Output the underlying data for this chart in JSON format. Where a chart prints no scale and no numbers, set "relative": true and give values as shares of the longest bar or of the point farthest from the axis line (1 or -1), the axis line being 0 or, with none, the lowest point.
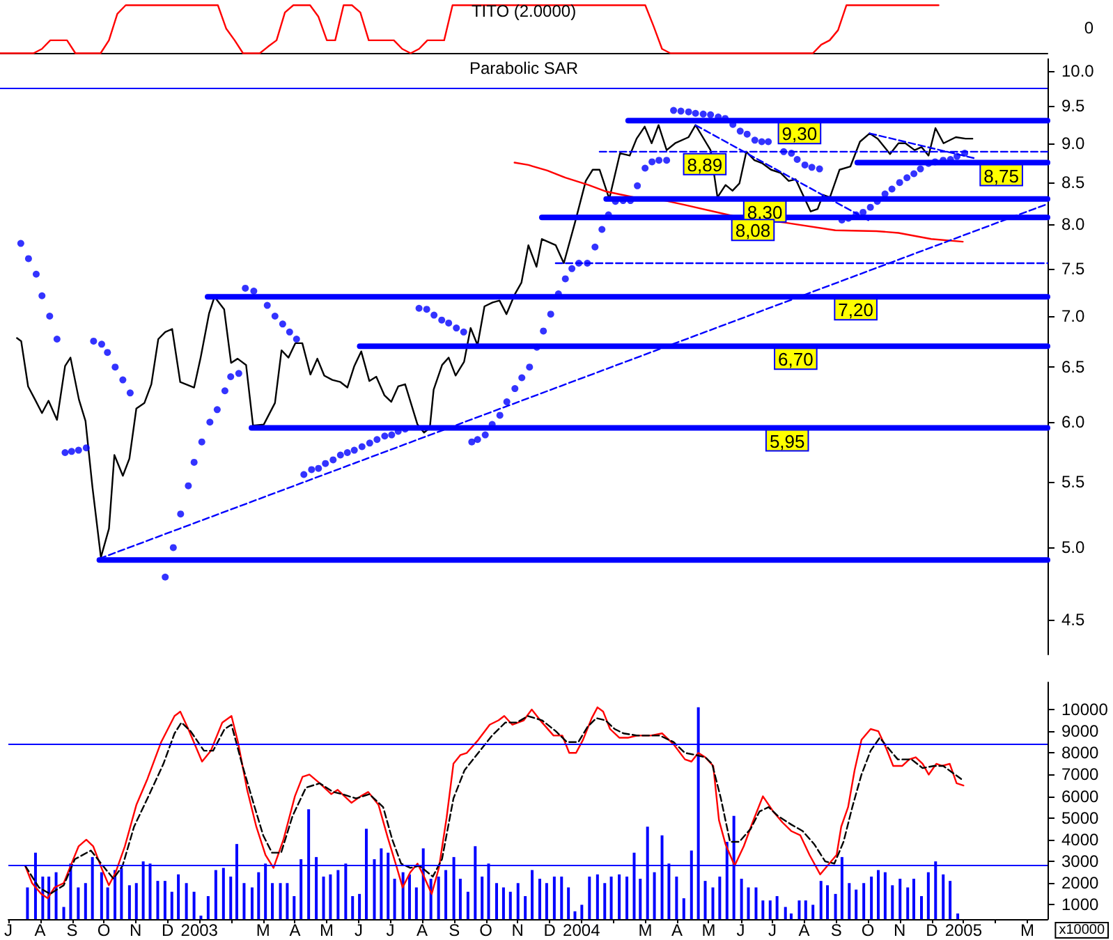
{
  "chart_data": [
    {
      "type": "line",
      "title": "TITO (2.0000)",
      "relative": true,
      "tick_labels": false,
      "marker": "none",
      "annotations": [
        "0"
      ],
      "categories": [
        null,
        null,
        null,
        null,
        null,
        null,
        null,
        null,
        null,
        null,
        null,
        null,
        null,
        null,
        null,
        null,
        null,
        null,
        null,
        null,
        null,
        null,
        null,
        null,
        null,
        null,
        null,
        null,
        null,
        null,
        null,
        null,
        null,
        null,
        null,
        null,
        null,
        null,
        null,
        null,
        null,
        null,
        null,
        null,
        null,
        null,
        null,
        null,
        null,
        null,
        null,
        null,
        null,
        null,
        null,
        null,
        null,
        null,
        null,
        null,
        null,
        null,
        null,
        null,
        null,
        null,
        null,
        null,
        null,
        null,
        null,
        null,
        null,
        null,
        null,
        null,
        null,
        null,
        null,
        null,
        null,
        null,
        null,
        null,
        null,
        null,
        null,
        null,
        null,
        null,
        null,
        null,
        null,
        null,
        null,
        null,
        null,
        null,
        null,
        null,
        null,
        null,
        null,
        null,
        null,
        null,
        null,
        null,
        null,
        null,
        null,
        null,
        null,
        null,
        null,
        null,
        null,
        null,
        null,
        null,
        null,
        null,
        null,
        null,
        null,
        null
      ],
      "series": [
        {
          "color": "#ff0000",
          "values": [
            0,
            0,
            0,
            0,
            0,
            0.09,
            0.27,
            0.27,
            0.27,
            0,
            0,
            0,
            0,
            0.27,
            0.82,
            1,
            1,
            1,
            1,
            1,
            1,
            1,
            1,
            1,
            1,
            1,
            1,
            0.51,
            0.27,
            0,
            0,
            0,
            0.14,
            0.27,
            0.85,
            1,
            1,
            1,
            0.76,
            0.27,
            0.27,
            1,
            1,
            0.85,
            0.27,
            0.27,
            0.27,
            0.27,
            0.09,
            0,
            0.09,
            0.27,
            0.27,
            0.27,
            1,
            1,
            1,
            1,
            1,
            1,
            1,
            1,
            1,
            1,
            1,
            1,
            1,
            1,
            1,
            1,
            1,
            1,
            1,
            1,
            1,
            1,
            1,
            1,
            0.56,
            0.09,
            0,
            0,
            0,
            0,
            0,
            0,
            0,
            0,
            0,
            0,
            0,
            0,
            0,
            0,
            0,
            0,
            0,
            0,
            0.18,
            0.27,
            0.48,
            1,
            1,
            1,
            1,
            1,
            1,
            1,
            1,
            1,
            1,
            1,
            1,
            null,
            null,
            null,
            null,
            null,
            null,
            null,
            null,
            null,
            null,
            null,
            null,
            null
          ]
        }
      ]
    },
    {
      "type": "line",
      "title": "Parabolic SAR",
      "log": "y",
      "xlim": [
        2002.5,
        2005.22
      ],
      "ylim": [
        4.28,
        10.18
      ],
      "tick_labels": "y",
      "marker": "none",
      "yticks": [
        4.5,
        {
          "value": 5,
          "label": "5.0"
        },
        5.5,
        {
          "value": 6,
          "label": "6.0"
        },
        6.5,
        {
          "value": 7,
          "label": "7.0"
        },
        7.5,
        {
          "value": 8,
          "label": "8.0"
        },
        8.5,
        {
          "value": 9,
          "label": "9.0"
        },
        9.5,
        {
          "value": 10,
          "label": "10.0"
        }
      ],
      "ref_lines": [
        {
          "axis": "y",
          "value": 9.76,
          "color": "#0000ff"
        }
      ],
      "series": [
        {
          "color": "#000000",
          "x": [
            2002.544,
            2002.555,
            2002.573,
            2002.591,
            2002.609,
            2002.626,
            2002.648,
            2002.669,
            2002.683,
            2002.705,
            2002.722,
            2002.74,
            2002.762,
            2002.783,
            2002.797,
            2002.819,
            2002.836,
            2002.854,
            2002.875,
            2002.893,
            2002.911,
            2002.929,
            2002.947,
            2002.968,
            2003.004,
            2003.021,
            2003.043,
            2003.057,
            2003.082,
            2003.1,
            2003.117,
            2003.139,
            2003.157,
            2003.185,
            2003.214,
            2003.231,
            2003.249,
            2003.267,
            2003.285,
            2003.306,
            2003.324,
            2003.342,
            2003.363,
            2003.384,
            2003.402,
            2003.42,
            2003.438,
            2003.459,
            2003.477,
            2003.498,
            2003.516,
            2003.534,
            2003.552,
            2003.584,
            2003.601,
            2003.616,
            2003.626,
            2003.648,
            2003.665,
            2003.683,
            2003.705,
            2003.722,
            2003.74,
            2003.758,
            2003.779,
            2003.797,
            2003.815,
            2003.836,
            2003.854,
            2003.872,
            2003.893,
            2003.907,
            2003.943,
            2003.964,
            2003.993,
            2004.021,
            2004.039,
            2004.057,
            2004.082,
            2004.11,
            2004.135,
            2004.153,
            2004.174,
            2004.192,
            2004.21,
            2004.231,
            2004.253,
            2004.288,
            2004.306,
            2004.345,
            2004.363,
            2004.384,
            2004.402,
            2004.42,
            2004.438,
            2004.459,
            2004.48,
            2004.502,
            2004.527,
            2004.548,
            2004.566,
            2004.605,
            2004.623,
            2004.637,
            2004.655,
            2004.68,
            2004.708,
            2004.733,
            2004.758,
            2004.779,
            2004.811,
            2004.833,
            2004.851,
            2004.875,
            2004.893,
            2004.911,
            2004.929,
            2004.95,
            2004.982,
            2005.007,
            2005.025
          ],
          "values": [
            6.78,
            6.75,
            6.32,
            6.2,
            6.08,
            6.19,
            6.02,
            6.51,
            6.59,
            6.2,
            6.01,
            5.46,
            4.93,
            5.14,
            5.72,
            5.55,
            5.69,
            6.12,
            6.17,
            6.34,
            6.77,
            6.84,
            6.87,
            6.36,
            6.31,
            6.59,
            7.03,
            7.2,
            7.07,
            6.54,
            6.58,
            6.52,
            5.97,
            5.98,
            6.17,
            6.66,
            6.59,
            6.73,
            6.73,
            6.43,
            6.58,
            6.42,
            6.38,
            6.36,
            6.31,
            6.51,
            6.65,
            6.37,
            6.41,
            6.24,
            6.18,
            6.32,
            6.34,
            5.98,
            5.91,
            5.95,
            6.29,
            6.52,
            6.59,
            6.42,
            6.55,
            6.88,
            6.71,
            7.1,
            7.14,
            7.16,
            7.02,
            7.22,
            7.35,
            7.76,
            7.52,
            7.83,
            7.76,
            7.56,
            8.02,
            8.52,
            8.66,
            8.66,
            8.3,
            8.87,
            8.84,
            9.06,
            9.22,
            9.0,
            9.24,
            8.91,
            9.0,
            9.08,
            9.24,
            8.91,
            8.32,
            8.47,
            8.4,
            8.49,
            8.89,
            8.78,
            8.74,
            8.66,
            8.62,
            8.52,
            8.54,
            8.15,
            8.18,
            8.35,
            8.32,
            8.66,
            8.7,
            9.02,
            9.13,
            9.06,
            8.86,
            9.0,
            9.0,
            8.91,
            8.95,
            8.84,
            9.2,
            9.0,
            9.08,
            9.06,
            9.06
          ]
        },
        {
          "type": "scatter",
          "marker": "circle",
          "color": "#0000ff",
          "x": [
            2002.554,
            2002.574,
            2002.594,
            2002.609,
            2002.629,
            2002.648,
            2002.669,
            2002.686,
            2002.704,
            2002.724,
            2002.743,
            2002.764,
            2002.779,
            2002.799,
            2002.819,
            2002.838,
            2002.929,
            2002.95,
            2002.969,
            2002.989,
            2003.004,
            2003.024,
            2003.045,
            2003.064,
            2003.084,
            2003.099,
            2003.12,
            2003.137,
            2003.159,
            2003.194,
            2003.214,
            2003.234,
            2003.252,
            2003.27,
            2003.289,
            2003.309,
            2003.327,
            2003.345,
            2003.365,
            2003.384,
            2003.402,
            2003.42,
            2003.44,
            2003.46,
            2003.479,
            2003.499,
            2003.517,
            2003.534,
            2003.552,
            2003.588,
            2003.608,
            2003.627,
            2003.647,
            2003.665,
            2003.685,
            2003.704,
            2003.725,
            2003.74,
            2003.76,
            2003.778,
            2003.798,
            2003.816,
            2003.837,
            2003.855,
            2003.875,
            2003.894,
            2003.911,
            2003.93,
            2003.95,
            2003.968,
            2003.985,
            2004.003,
            2004.025,
            2004.045,
            2004.063,
            2004.08,
            2004.098,
            2004.118,
            2004.137,
            2004.155,
            2004.175,
            2004.193,
            2004.211,
            2004.231,
            2004.249,
            2004.268,
            2004.288,
            2004.306,
            2004.326,
            2004.345,
            2004.365,
            2004.383,
            2004.403,
            2004.422,
            2004.44,
            2004.46,
            2004.478,
            2004.495,
            2004.535,
            2004.555,
            2004.57,
            2004.59,
            2004.608,
            2004.628,
            2004.686,
            2004.703,
            2004.723,
            2004.741,
            2004.76,
            2004.778,
            2004.798,
            2004.816,
            2004.836,
            2004.855,
            2004.873,
            2004.89,
            2004.911,
            2004.928,
            2004.949,
            2004.968,
            2004.985,
            2005.005
          ],
          "values": [
            7.78,
            7.61,
            7.44,
            7.21,
            7.0,
            6.77,
            5.74,
            5.75,
            5.76,
            5.78,
            6.75,
            6.72,
            6.64,
            6.5,
            6.38,
            6.26,
            4.79,
            5.0,
            5.25,
            5.47,
            5.66,
            5.83,
            6.0,
            6.11,
            6.28,
            6.41,
            6.44,
            7.29,
            7.26,
            7.11,
            7.0,
            6.92,
            6.84,
            6.77,
            5.56,
            5.6,
            5.61,
            5.65,
            5.68,
            5.72,
            5.74,
            5.76,
            5.79,
            5.82,
            5.85,
            5.88,
            5.89,
            5.92,
            5.94,
            7.08,
            7.07,
            7.01,
            6.96,
            6.93,
            6.88,
            6.84,
            5.83,
            5.85,
            5.89,
            5.98,
            6.06,
            6.18,
            6.3,
            6.4,
            6.5,
            6.69,
            6.85,
            7.02,
            7.23,
            7.39,
            7.5,
            7.56,
            7.56,
            7.74,
            7.94,
            8.11,
            8.27,
            8.28,
            8.28,
            8.46,
            8.68,
            8.76,
            8.78,
            8.78,
            9.44,
            9.43,
            9.42,
            9.4,
            9.39,
            9.38,
            9.35,
            9.33,
            9.25,
            9.16,
            9.12,
            9.04,
            9.02,
            9.02,
            8.89,
            8.87,
            8.79,
            8.72,
            8.69,
            8.67,
            8.05,
            8.07,
            8.11,
            8.14,
            8.2,
            8.27,
            8.36,
            8.42,
            8.5,
            8.56,
            8.61,
            8.67,
            8.74,
            8.76,
            8.78,
            8.79,
            8.83,
            8.87
          ]
        },
        {
          "color": "#ff0000",
          "x": [
            2003.836,
            2003.872,
            2003.921,
            2003.968,
            2004.028,
            2004.074,
            2004.156,
            2004.227,
            2004.277,
            2004.42,
            2004.537,
            2004.669,
            2004.776,
            2004.833,
            2004.918,
            2005.0
          ],
          "values": [
            8.75,
            8.72,
            8.65,
            8.56,
            8.47,
            8.39,
            8.31,
            8.28,
            8.23,
            8.08,
            8.02,
            7.93,
            7.92,
            7.9,
            7.83,
            7.8
          ]
        },
        {
          "color": "#0000ff",
          "x": [
            2004.131,
            2004.576,
            2005.22
          ],
          "values": [
            9.3,
            9.3,
            9.3
          ],
          "value_labels": [
            null,
            "9,30",
            null
          ]
        },
        {
          "color": "#0000ff",
          "line_style": "dashed",
          "x": [
            2004.057,
            2004.33,
            2005.22
          ],
          "values": [
            8.89,
            8.89,
            8.89
          ],
          "value_labels": [
            null,
            "8,89",
            null
          ]
        },
        {
          "color": "#0000ff",
          "x": [
            2004.726,
            2005.1,
            2005.22
          ],
          "values": [
            8.75,
            8.75,
            8.75
          ],
          "value_labels": [
            null,
            "8,75",
            null
          ]
        },
        {
          "color": "#0000ff",
          "x": [
            2004.074,
            2004.486,
            2005.22
          ],
          "values": [
            8.3,
            8.3,
            8.3
          ],
          "value_labels": [
            null,
            "8,30",
            null
          ]
        },
        {
          "color": "#0000ff",
          "x": [
            2003.907,
            2004.455,
            2005.22
          ],
          "values": [
            8.08,
            8.08,
            8.08
          ],
          "value_labels": [
            null,
            "8,08",
            null
          ]
        },
        {
          "color": "#0000ff",
          "line_style": "dashed",
          "x": [
            2003.943,
            2005.22
          ],
          "values": [
            7.56,
            7.56
          ]
        },
        {
          "color": "#0000ff",
          "x": [
            2003.039,
            2004.722,
            2005.22
          ],
          "values": [
            7.2,
            7.2,
            7.2
          ],
          "value_labels": [
            null,
            "7,20",
            null
          ]
        },
        {
          "color": "#0000ff",
          "x": [
            2003.434,
            2004.566,
            2005.22
          ],
          "values": [
            6.7,
            6.7,
            6.7
          ],
          "value_labels": [
            null,
            "6,70",
            null
          ]
        },
        {
          "color": "#0000ff",
          "x": [
            2003.153,
            2004.544,
            2005.22
          ],
          "values": [
            5.95,
            5.95,
            5.95
          ],
          "value_labels": [
            null,
            "5,95",
            null
          ]
        },
        {
          "color": "#0000ff",
          "x": [
            2002.758,
            2005.22
          ],
          "values": [
            4.91,
            4.91
          ]
        },
        {
          "color": "#0000ff",
          "line_style": "dashed",
          "x": [
            2002.758,
            2005.22
          ],
          "values": [
            4.92,
            8.24
          ]
        },
        {
          "color": "#0000ff",
          "line_style": "dashed",
          "x": [
            2004.306,
            2004.758
          ],
          "values": [
            9.24,
            8.04
          ]
        },
        {
          "color": "#0000ff",
          "line_style": "dashed",
          "x": [
            2004.758,
            2005.035
          ],
          "values": [
            9.13,
            8.8
          ]
        }
      ]
    },
    {
      "type": "bar",
      "ylabel": "x10000",
      "xlim": [
        2002.5,
        2005.22
      ],
      "ylim": [
        340,
        11250
      ],
      "marker": "none",
      "xticks": [
        {
          "value": 2002.5,
          "label": "J"
        },
        {
          "value": 2002.583,
          "label": "A"
        },
        {
          "value": 2002.667,
          "label": "S"
        },
        {
          "value": 2002.75,
          "label": "O"
        },
        {
          "value": 2002.833,
          "label": "N"
        },
        {
          "value": 2002.917,
          "label": "D"
        },
        2003,
        {
          "value": 2003.083,
          "label": null
        },
        {
          "value": 2003.167,
          "label": "M"
        },
        {
          "value": 2003.25,
          "label": "A"
        },
        {
          "value": 2003.333,
          "label": "M"
        },
        {
          "value": 2003.417,
          "label": "J"
        },
        {
          "value": 2003.5,
          "label": "J"
        },
        {
          "value": 2003.583,
          "label": "A"
        },
        {
          "value": 2003.667,
          "label": "S"
        },
        {
          "value": 2003.75,
          "label": "O"
        },
        {
          "value": 2003.833,
          "label": "N"
        },
        {
          "value": 2003.917,
          "label": "D"
        },
        2004,
        {
          "value": 2004.083,
          "label": null
        },
        {
          "value": 2004.167,
          "label": "M"
        },
        {
          "value": 2004.25,
          "label": "A"
        },
        {
          "value": 2004.333,
          "label": "M"
        },
        {
          "value": 2004.417,
          "label": "J"
        },
        {
          "value": 2004.5,
          "label": "J"
        },
        {
          "value": 2004.583,
          "label": "A"
        },
        {
          "value": 2004.667,
          "label": "S"
        },
        {
          "value": 2004.75,
          "label": "O"
        },
        {
          "value": 2004.833,
          "label": "N"
        },
        {
          "value": 2004.917,
          "label": "D"
        },
        2005,
        {
          "value": 2005.083,
          "label": null
        },
        {
          "value": 2005.167,
          "label": "M"
        }
      ],
      "yticks": [
        1000,
        2000,
        3000,
        4000,
        5000,
        6000,
        7000,
        8000,
        9000,
        10000
      ],
      "ref_lines": [
        {
          "axis": "y",
          "value": 8400,
          "color": "#0000ff"
        },
        {
          "axis": "y",
          "value": 2800,
          "color": "#0000ff"
        }
      ],
      "series": [
        {
          "color": "#0000ff",
          "x": [
            2002.55,
            2002.571,
            2002.59,
            2002.606,
            2002.625,
            2002.645,
            2002.663,
            2002.683,
            2002.702,
            2002.72,
            2002.744,
            2002.76,
            2002.779,
            2002.796,
            2002.817,
            2002.835,
            2002.853,
            2002.871,
            2002.891,
            2002.91,
            2002.928,
            2002.945,
            2002.966,
            2002.986,
            2003.004,
            2003.023,
            2003.043,
            2003.063,
            2003.082,
            2003.098,
            2003.117,
            2003.138,
            2003.155,
            2003.173,
            2003.191,
            2003.212,
            2003.23,
            2003.248,
            2003.266,
            2003.286,
            2003.306,
            2003.325,
            2003.343,
            2003.363,
            2003.383,
            2003.401,
            2003.419,
            2003.437,
            2003.458,
            2003.476,
            2003.494,
            2003.511,
            2003.533,
            2003.55,
            2003.568,
            2003.586,
            2003.606,
            2003.626,
            2003.645,
            2003.666,
            2003.683,
            2003.703,
            2003.722,
            2003.74,
            2003.757,
            2003.778,
            2003.796,
            2003.814,
            2003.834,
            2003.853,
            2003.871,
            2003.891,
            2003.909,
            2003.929,
            2003.948,
            2003.966,
            2003.983,
            2004.001,
            2004.021,
            2004.042,
            2004.061,
            2004.078,
            2004.099,
            2004.119,
            2004.138,
            2004.154,
            2004.173,
            2004.191,
            2004.211,
            2004.229,
            2004.249,
            2004.268,
            2004.288,
            2004.306,
            2004.324,
            2004.344,
            2004.362,
            2004.381,
            2004.399,
            2004.419,
            2004.437,
            2004.457,
            2004.475,
            2004.494,
            2004.512,
            2004.534,
            2004.549,
            2004.57,
            2004.587,
            2004.606,
            2004.627,
            2004.644,
            2004.665,
            2004.682,
            2004.701,
            2004.719,
            2004.739,
            2004.759,
            2004.777,
            2004.795,
            2004.814,
            2004.834,
            2004.854,
            2004.87,
            2004.89,
            2004.908,
            2004.927,
            2004.947,
            2004.965,
            2004.985
          ],
          "values": [
            1800,
            3400,
            2300,
            2300,
            2500,
            900,
            2900,
            1800,
            2000,
            3200,
            2500,
            1800,
            2600,
            2700,
            1900,
            2000,
            3000,
            2900,
            2100,
            2100,
            1600,
            2400,
            2000,
            1600,
            500,
            1400,
            2600,
            2700,
            2300,
            3800,
            2000,
            1800,
            2500,
            2900,
            2000,
            2000,
            2000,
            1400,
            3100,
            5400,
            3200,
            2300,
            2400,
            2600,
            2900,
            1400,
            1500,
            4500,
            3100,
            3600,
            3400,
            2200,
            2500,
            2400,
            1800,
            3600,
            2200,
            2300,
            2600,
            3200,
            2200,
            1600,
            3700,
            2300,
            2900,
            2000,
            1800,
            1600,
            2000,
            1400,
            2600,
            2200,
            2000,
            2300,
            2300,
            1800,
            700,
            1000,
            2300,
            2400,
            2000,
            2300,
            2400,
            2300,
            3400,
            2200,
            4600,
            2500,
            4200,
            2900,
            2300,
            1300,
            3500,
            10100,
            2100,
            1800,
            2300,
            3900,
            5100,
            2200,
            1800,
            1800,
            1200,
            1200,
            1400,
            900,
            600,
            1200,
            1200,
            1000,
            2100,
            1900,
            1500,
            3200,
            2000,
            1700,
            2000,
            2300,
            2600,
            2500,
            1900,
            2200,
            1800,
            2200,
            1400,
            2500,
            3000,
            2400,
            2100,
            600
          ]
        },
        {
          "type": "line",
          "color": "#ff0000",
          "x": [
            2002.544,
            2002.562,
            2002.586,
            2002.603,
            2002.621,
            2002.645,
            2002.663,
            2002.684,
            2002.704,
            2002.722,
            2002.746,
            2002.763,
            2002.781,
            2002.805,
            2002.835,
            2002.864,
            2002.9,
            2002.935,
            2002.95,
            2002.971,
            2003.007,
            2003.03,
            2003.06,
            2003.084,
            2003.101,
            2003.125,
            2003.149,
            2003.173,
            2003.194,
            2003.22,
            2003.25,
            2003.27,
            2003.288,
            2003.315,
            2003.345,
            2003.362,
            2003.398,
            2003.422,
            2003.442,
            2003.469,
            2003.493,
            2003.517,
            2003.532,
            2003.552,
            2003.571,
            2003.588,
            2003.608,
            2003.627,
            2003.647,
            2003.665,
            2003.683,
            2003.7,
            2003.73,
            2003.76,
            2003.783,
            2003.798,
            2003.819,
            2003.849,
            2003.87,
            2003.897,
            2003.927,
            2003.95,
            2003.968,
            2003.986,
            2004.004,
            2004.027,
            2004.042,
            2004.057,
            2004.075,
            2004.099,
            2004.122,
            2004.146,
            2004.182,
            2004.211,
            2004.241,
            2004.271,
            2004.288,
            2004.306,
            2004.324,
            2004.345,
            2004.36,
            2004.377,
            2004.401,
            2004.425,
            2004.448,
            2004.475,
            2004.502,
            2004.526,
            2004.549,
            2004.573,
            2004.597,
            2004.625,
            2004.644,
            2004.668,
            2004.68,
            2004.698,
            2004.715,
            2004.733,
            2004.757,
            2004.777,
            2004.798,
            2004.816,
            2004.84,
            2004.858,
            2004.875,
            2004.893,
            2004.909,
            2004.929,
            2004.944,
            2004.964,
            2004.982,
            2005.0
          ],
          "values": [
            2800,
            2000,
            1500,
            1300,
            1800,
            2000,
            2800,
            3700,
            4000,
            3700,
            2600,
            1900,
            2500,
            3700,
            5600,
            6800,
            8500,
            9700,
            9900,
            9100,
            7600,
            8100,
            9400,
            9700,
            8500,
            6300,
            4600,
            3300,
            2700,
            4000,
            6000,
            6900,
            7000,
            6600,
            6100,
            6300,
            5700,
            6000,
            6200,
            5600,
            4100,
            2700,
            1800,
            2500,
            2900,
            2300,
            1500,
            2700,
            5000,
            7500,
            7900,
            8000,
            8600,
            9300,
            9500,
            9700,
            9300,
            9500,
            10000,
            9400,
            8800,
            8800,
            8000,
            8000,
            8600,
            9600,
            10100,
            9900,
            9100,
            8700,
            8700,
            8800,
            8800,
            8900,
            8400,
            7700,
            7600,
            8000,
            7800,
            7400,
            4900,
            3800,
            2800,
            3700,
            4800,
            6000,
            5300,
            4800,
            4400,
            4200,
            3300,
            2400,
            2800,
            3300,
            4600,
            5500,
            7200,
            8600,
            9100,
            9000,
            8200,
            7400,
            7400,
            7700,
            7800,
            7500,
            7000,
            7500,
            7400,
            7500,
            6600,
            6500
          ]
        },
        {
          "type": "line",
          "color": "#000000",
          "line_style": "dashed",
          "x": [
            2002.544,
            2002.58,
            2002.609,
            2002.645,
            2002.674,
            2002.716,
            2002.752,
            2002.775,
            2002.799,
            2002.829,
            2002.864,
            2002.906,
            2002.935,
            2002.953,
            2002.977,
            2003.012,
            2003.036,
            2003.066,
            2003.084,
            2003.113,
            2003.143,
            2003.167,
            2003.19,
            2003.214,
            2003.244,
            2003.279,
            2003.315,
            2003.35,
            2003.374,
            2003.41,
            2003.445,
            2003.481,
            2003.505,
            2003.528,
            2003.552,
            2003.576,
            2003.611,
            2003.635,
            2003.665,
            2003.694,
            2003.73,
            2003.766,
            2003.801,
            2003.831,
            2003.86,
            2003.897,
            2003.933,
            2003.962,
            2003.992,
            2004.016,
            2004.039,
            2004.063,
            2004.087,
            2004.11,
            2004.146,
            2004.205,
            2004.241,
            2004.271,
            2004.3,
            2004.324,
            2004.342,
            2004.365,
            2004.389,
            2004.413,
            2004.443,
            2004.466,
            2004.49,
            2004.514,
            2004.549,
            2004.579,
            2004.609,
            2004.638,
            2004.662,
            2004.686,
            2004.709,
            2004.733,
            2004.757,
            2004.781,
            2004.804,
            2004.828,
            2004.864,
            2004.893,
            2004.923,
            2004.947,
            2004.97,
            2004.994
          ],
          "values": [
            2800,
            1800,
            1500,
            1900,
            3100,
            3500,
            2700,
            2200,
            2800,
            4600,
            5900,
            7500,
            8900,
            9400,
            9000,
            8100,
            8100,
            9100,
            9300,
            7400,
            5600,
            4200,
            3400,
            3400,
            5100,
            6400,
            6600,
            6200,
            6100,
            5900,
            6100,
            5500,
            4000,
            2900,
            2700,
            2800,
            2300,
            3100,
            5900,
            7200,
            8000,
            8800,
            9400,
            9400,
            9700,
            9500,
            9000,
            8500,
            8500,
            9200,
            9600,
            9500,
            9100,
            8900,
            8800,
            8800,
            8500,
            8000,
            7900,
            7800,
            7500,
            5900,
            3900,
            3900,
            4500,
            5300,
            5500,
            5100,
            4700,
            4400,
            3800,
            3000,
            2900,
            3900,
            5500,
            7000,
            8100,
            8700,
            8200,
            7700,
            7700,
            7300,
            7400,
            7400,
            7100,
            6800
          ]
        }
      ]
    }
  ]
}
